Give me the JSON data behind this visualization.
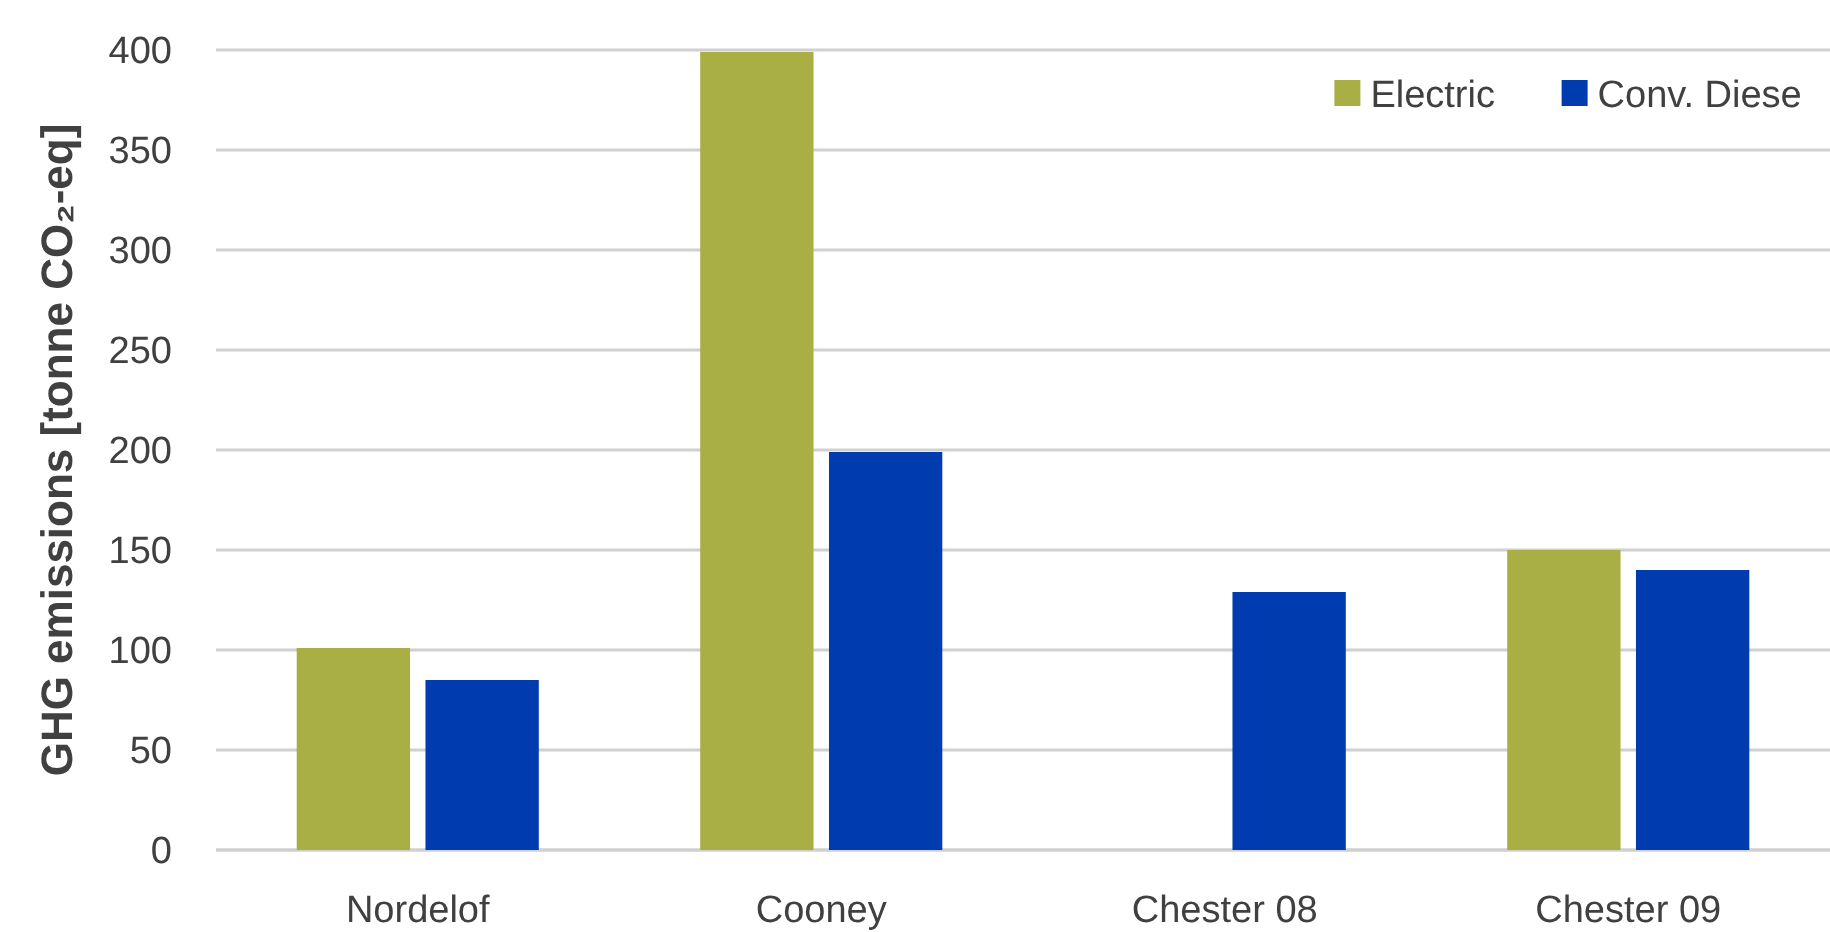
{
  "chart_data": {
    "type": "bar",
    "ylabel": "GHG emissions [tonne CO₂-eq]",
    "categories": [
      "Nordelof",
      "Cooney",
      "Chester 08",
      "Chester 09"
    ],
    "series": [
      {
        "name": "Electric",
        "color": "#a9af45",
        "values": [
          101,
          399,
          null,
          150
        ]
      },
      {
        "name": "Conv. Diese",
        "color": "#003cb0",
        "values": [
          85,
          199,
          129,
          140
        ]
      }
    ],
    "ylim": [
      0,
      400
    ],
    "yticks": [
      0,
      50,
      100,
      150,
      200,
      250,
      300,
      350,
      400
    ],
    "grid": "y",
    "legend": "top right"
  }
}
